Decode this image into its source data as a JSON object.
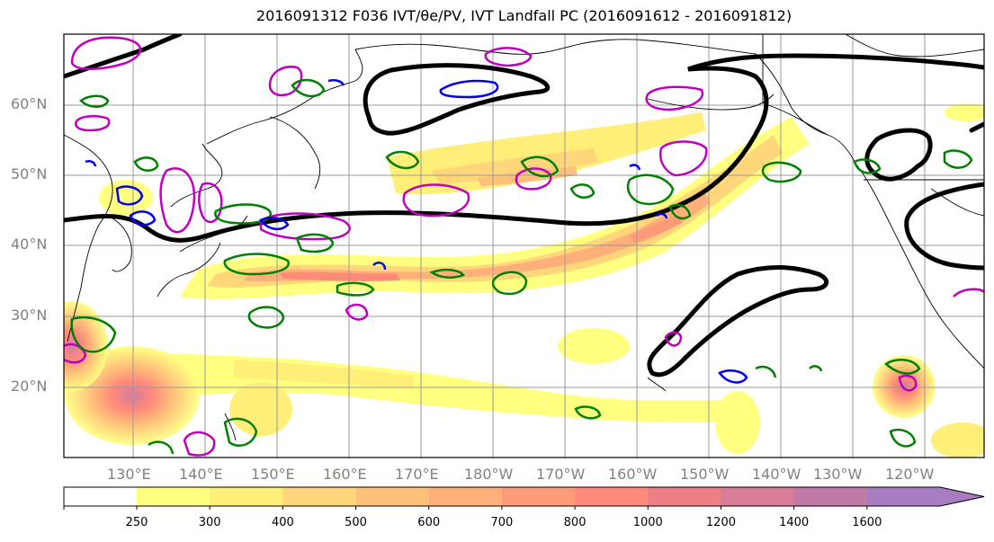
{
  "title": "2016091312 F036 IVT/θe/PV, IVT Landfall PC (2016091612 - 2016091812)",
  "lat_labels": [
    "60°N",
    "50°N",
    "40°N",
    "30°N",
    "20°N"
  ],
  "lon_labels": [
    "130°E",
    "140°E",
    "150°E",
    "160°E",
    "170°E",
    "180°W",
    "170°W",
    "160°W",
    "150°W",
    "140°W",
    "130°W",
    "120°W"
  ],
  "colorbar": {
    "ticks": [
      "250",
      "300",
      "400",
      "500",
      "600",
      "700",
      "800",
      "1000",
      "1200",
      "1400",
      "1600"
    ],
    "colors": [
      "#ffff80",
      "#ffee77",
      "#ffd77a",
      "#ffc07a",
      "#ffb07a",
      "#ff9a78",
      "#ff8a7a",
      "#f07e86",
      "#d87c98",
      "#c07aa8",
      "#a87cc0"
    ]
  },
  "colors": {
    "land_outline": "#000000",
    "grid": "#999999",
    "black_contour": "#000000",
    "magenta_contour": "#c000c0",
    "green_contour": "#008000",
    "blue_contour": "#0000ee"
  }
}
